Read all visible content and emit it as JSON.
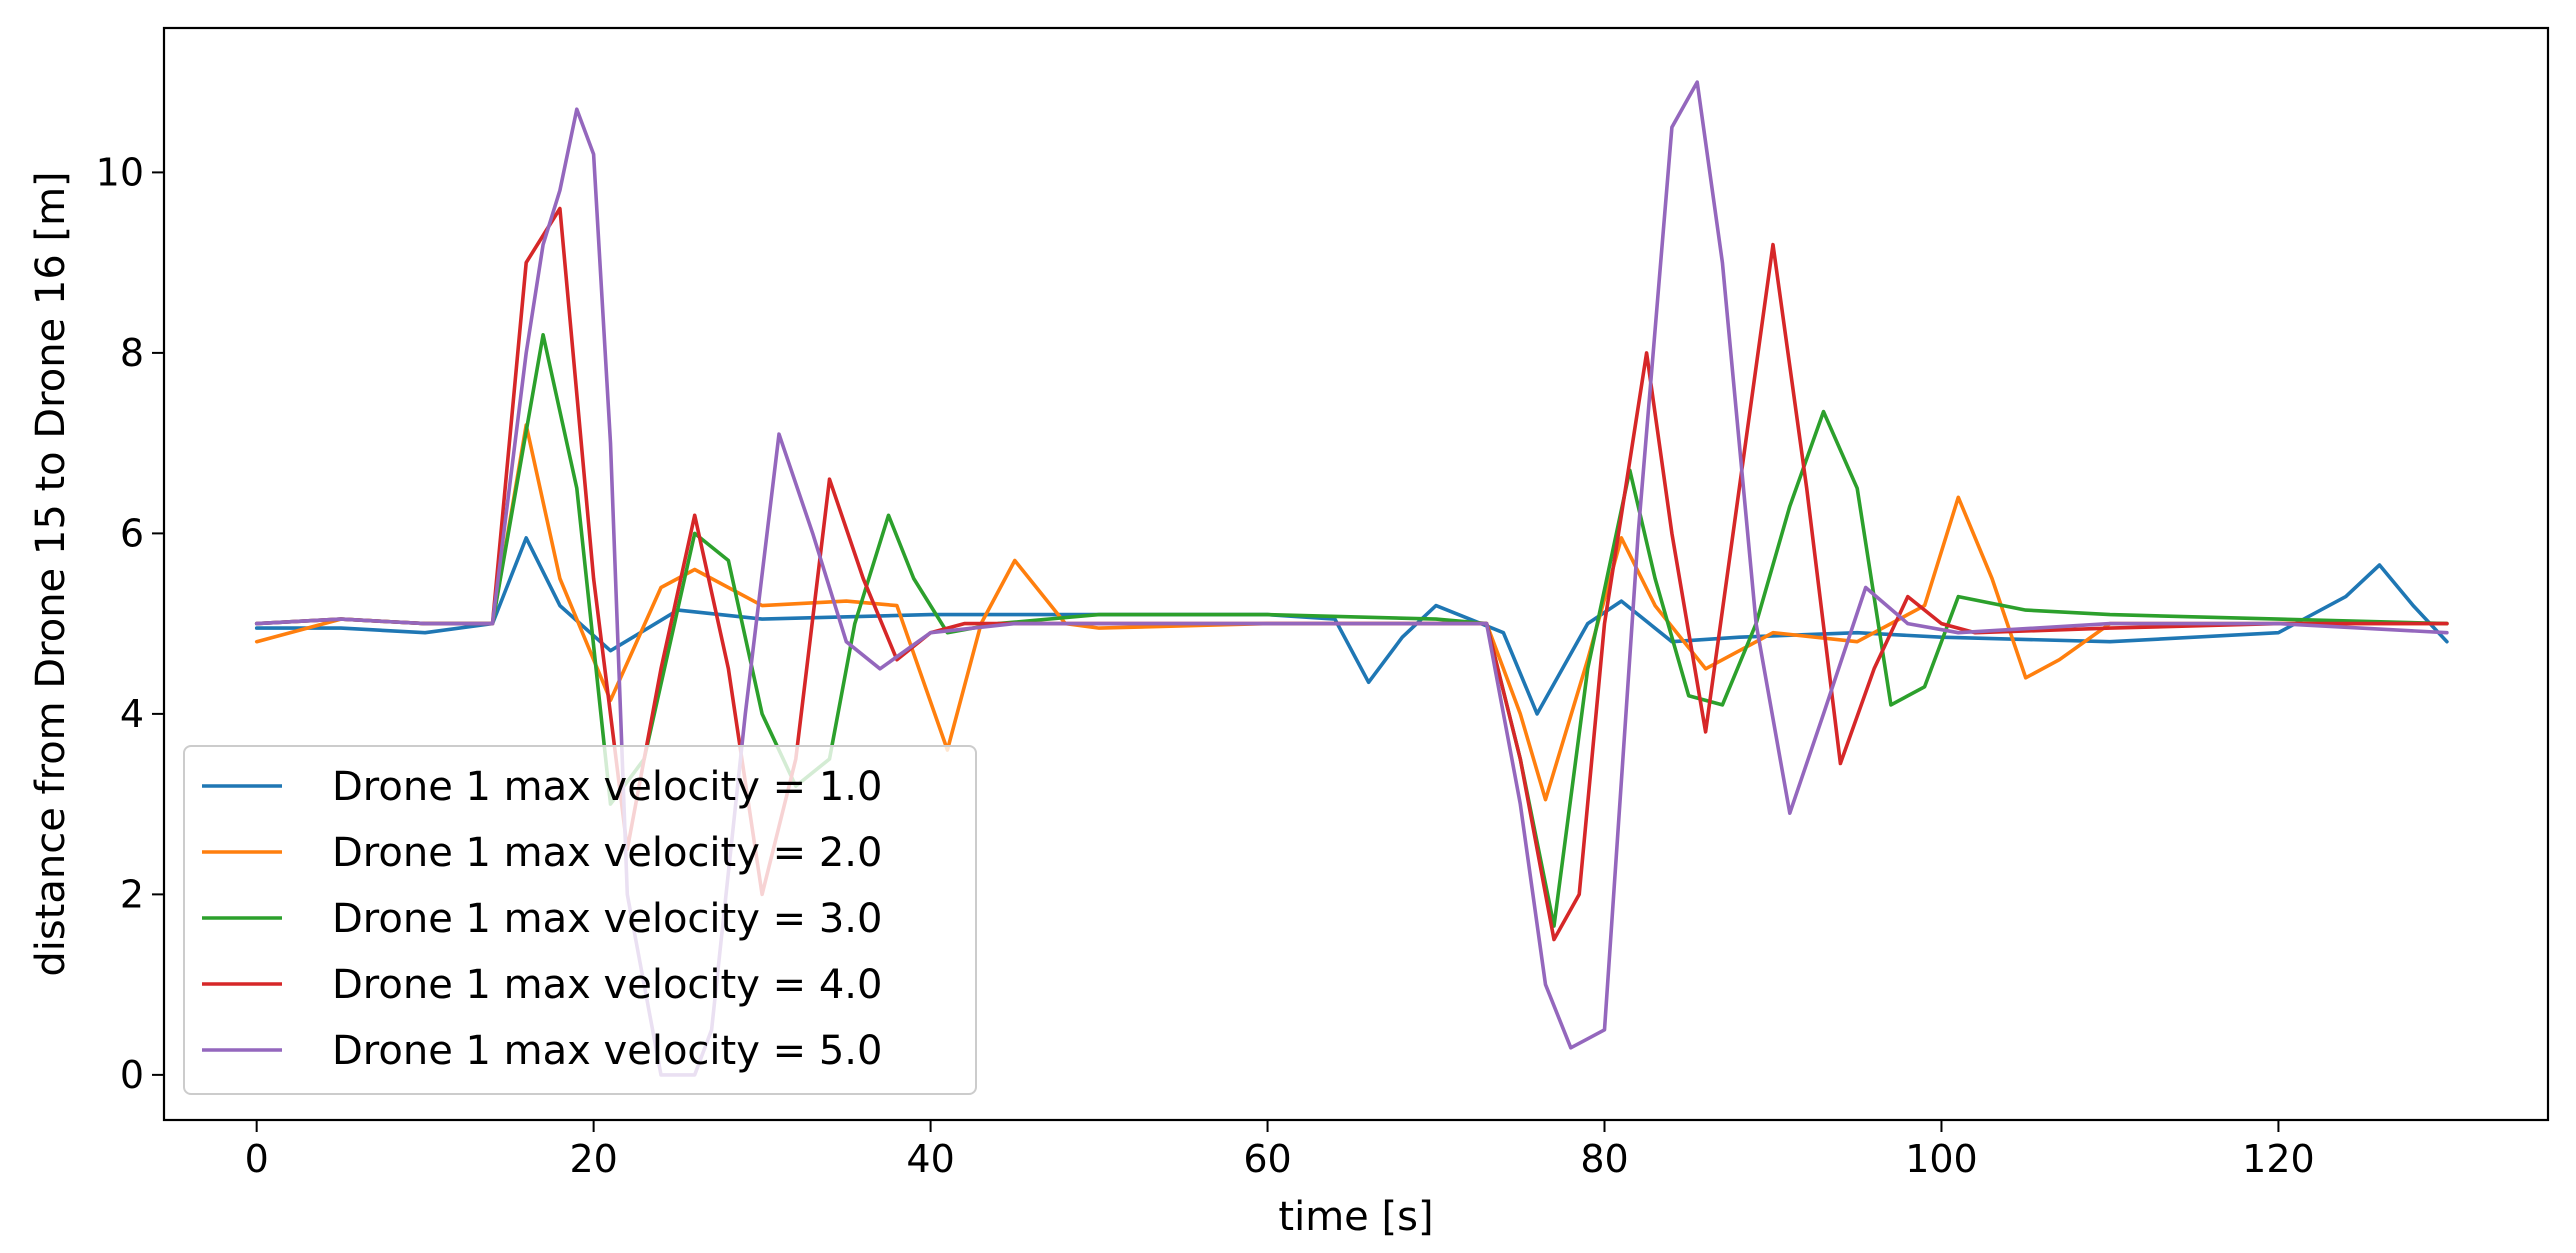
{
  "chart_data": {
    "type": "line",
    "title": "",
    "xlabel": "time [s]",
    "ylabel": "distance from Drone 15 to Drone 16 [m]",
    "xlim": [
      -5.5,
      136
    ],
    "ylim": [
      -0.5,
      11.6
    ],
    "xticks": [
      0,
      20,
      40,
      60,
      80,
      100,
      120
    ],
    "yticks": [
      0,
      2,
      4,
      6,
      8,
      10
    ],
    "xtick_labels": [
      "0",
      "20",
      "40",
      "60",
      "80",
      "100",
      "120"
    ],
    "ytick_labels": [
      "0",
      "2",
      "4",
      "6",
      "8",
      "10"
    ],
    "grid": false,
    "legend_position": "lower-left",
    "series": [
      {
        "name": "Drone 1 max velocity = 1.0",
        "color": "#1f77b4",
        "x": [
          0,
          5,
          10,
          14,
          16,
          18,
          21,
          25,
          30,
          40,
          50,
          60,
          64,
          66,
          68,
          70,
          72,
          74,
          76,
          79,
          81,
          84,
          88,
          95,
          100,
          110,
          120,
          124,
          126,
          128,
          130
        ],
        "y": [
          4.95,
          4.95,
          4.9,
          5.0,
          5.95,
          5.2,
          4.7,
          5.15,
          5.05,
          5.1,
          5.1,
          5.1,
          5.05,
          4.35,
          4.85,
          5.2,
          5.05,
          4.9,
          4.0,
          5.0,
          5.25,
          4.8,
          4.85,
          4.9,
          4.85,
          4.8,
          4.9,
          5.3,
          5.65,
          5.2,
          4.8
        ]
      },
      {
        "name": "Drone 1 max velocity = 2.0",
        "color": "#ff7f0e",
        "x": [
          0,
          5,
          10,
          14,
          16,
          18,
          21,
          24,
          26,
          30,
          35,
          38,
          41,
          43,
          45,
          48,
          50,
          60,
          70,
          73,
          75,
          76.5,
          79,
          81,
          83,
          86,
          90,
          95,
          99,
          101,
          103,
          105,
          107,
          110,
          120,
          130
        ],
        "y": [
          4.8,
          5.05,
          5.0,
          5.0,
          7.2,
          5.5,
          4.15,
          5.4,
          5.6,
          5.2,
          5.25,
          5.2,
          3.6,
          5.0,
          5.7,
          5.0,
          4.95,
          5.0,
          5.0,
          5.0,
          4.0,
          3.05,
          4.6,
          5.95,
          5.2,
          4.5,
          4.9,
          4.8,
          5.2,
          6.4,
          5.5,
          4.4,
          4.6,
          5.0,
          5.0,
          5.0
        ]
      },
      {
        "name": "Drone 1 max velocity = 3.0",
        "color": "#2ca02c",
        "x": [
          0,
          5,
          10,
          14,
          17,
          19,
          21,
          23,
          26,
          28,
          30,
          32,
          34,
          35.5,
          37.5,
          39,
          41,
          44,
          50,
          60,
          70,
          73,
          75,
          77,
          79,
          81.5,
          83,
          85,
          87,
          89,
          91,
          93,
          95,
          97,
          99,
          101,
          105,
          110,
          120,
          130
        ],
        "y": [
          5.0,
          5.05,
          5.0,
          5.0,
          8.2,
          6.5,
          3.0,
          3.5,
          6.0,
          5.7,
          4.0,
          3.2,
          3.5,
          5.0,
          6.2,
          5.5,
          4.9,
          5.0,
          5.1,
          5.1,
          5.05,
          5.0,
          3.5,
          1.65,
          4.5,
          6.7,
          5.5,
          4.2,
          4.1,
          5.0,
          6.3,
          7.35,
          6.5,
          4.1,
          4.3,
          5.3,
          5.15,
          5.1,
          5.05,
          5.0
        ]
      },
      {
        "name": "Drone 1 max velocity = 4.0",
        "color": "#d62728",
        "x": [
          0,
          5,
          10,
          14,
          16,
          18,
          20,
          22,
          24,
          26,
          28,
          30,
          32,
          34,
          36,
          38,
          40,
          42,
          50,
          60,
          70,
          73,
          75,
          77,
          78.5,
          80,
          82.5,
          84,
          86,
          88,
          90,
          92,
          94,
          96,
          98,
          100,
          102,
          110,
          120,
          130
        ],
        "y": [
          5.0,
          5.05,
          5.0,
          5.0,
          9.0,
          9.6,
          5.5,
          2.5,
          4.5,
          6.2,
          4.5,
          2.0,
          3.5,
          6.6,
          5.5,
          4.6,
          4.9,
          5.0,
          5.0,
          5.0,
          5.0,
          5.0,
          3.5,
          1.5,
          2.0,
          5.0,
          8.0,
          6.0,
          3.8,
          6.5,
          9.2,
          6.5,
          3.45,
          4.5,
          5.3,
          5.0,
          4.9,
          4.95,
          5.0,
          5.0
        ]
      },
      {
        "name": "Drone 1 max velocity = 5.0",
        "color": "#9467bd",
        "x": [
          0,
          5,
          10,
          14,
          16,
          17,
          18,
          19,
          20,
          21,
          22,
          24,
          26,
          27,
          29,
          31,
          33,
          35,
          37,
          40,
          45,
          50,
          60,
          70,
          73,
          75,
          76.5,
          78,
          79,
          80,
          82,
          84,
          85.5,
          87,
          89,
          91,
          93,
          95.5,
          98,
          101,
          110,
          120,
          130
        ],
        "y": [
          5.0,
          5.05,
          5.0,
          5.0,
          8.0,
          9.2,
          9.8,
          10.7,
          10.2,
          7.0,
          2.0,
          0.0,
          0.0,
          0.5,
          4.0,
          7.1,
          6.0,
          4.8,
          4.5,
          4.9,
          5.0,
          5.0,
          5.0,
          5.0,
          5.0,
          3.0,
          1.0,
          0.3,
          0.4,
          0.5,
          6.0,
          10.5,
          11.0,
          9.0,
          5.0,
          2.9,
          4.0,
          5.4,
          5.0,
          4.9,
          5.0,
          5.0,
          4.9
        ]
      }
    ]
  }
}
